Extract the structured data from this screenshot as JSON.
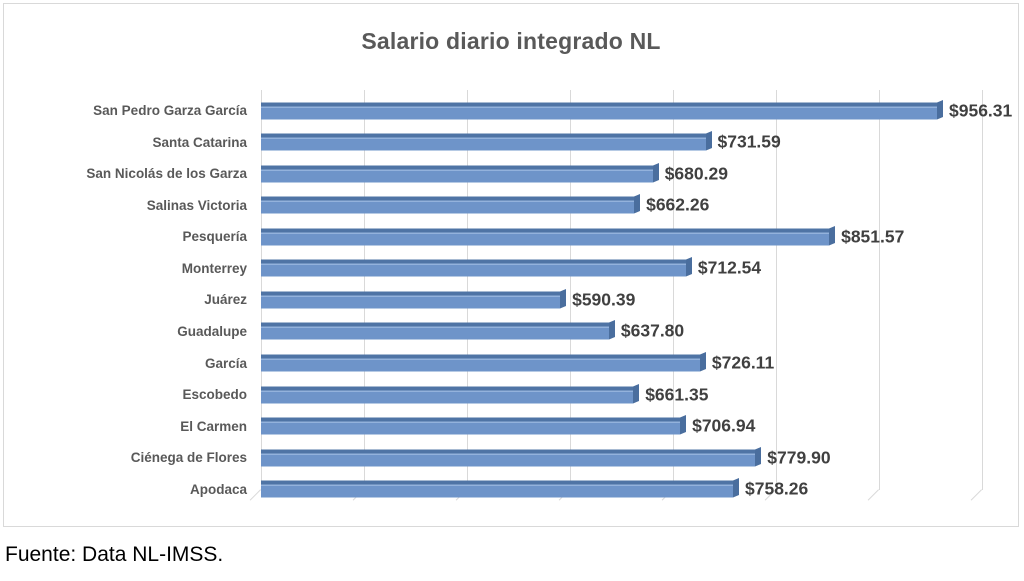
{
  "title": "Salario diario integrado NL",
  "source_note": "Fuente: Data NL-IMSS.",
  "colors": {
    "bar_main": "#6e94c9",
    "bar_top_edge": "#4f74a5",
    "bar_highlight": "#93b2dc",
    "bar_end_cap": "#4a6e9e",
    "gridline": "#d9d9d9",
    "frame_border": "#d9d9d9",
    "title_text": "#595959",
    "category_text": "#595959",
    "value_text": "#404040",
    "source_text": "#000000"
  },
  "chart_data": {
    "type": "bar",
    "orientation": "horizontal",
    "title": "Salario diario integrado NL",
    "categories": [
      "San Pedro Garza García",
      "Santa Catarina",
      "San Nicolás de los Garza",
      "Salinas Victoria",
      "Pesquería",
      "Monterrey",
      "Juárez",
      "Guadalupe",
      "García",
      "Escobedo",
      "El Carmen",
      "Ciénega de Flores",
      "Apodaca"
    ],
    "values": [
      956.31,
      731.59,
      680.29,
      662.26,
      851.57,
      712.54,
      590.39,
      637.8,
      726.11,
      661.35,
      706.94,
      779.9,
      758.26
    ],
    "data_labels": [
      "$956.31",
      "$731.59",
      "$680.29",
      "$662.26",
      "$851.57",
      "$712.54",
      "$590.39",
      "$637.80",
      "$726.11",
      "$661.35",
      "$706.94",
      "$779.90",
      "$758.26"
    ],
    "value_prefix": "$",
    "xlim": [
      300,
      1000
    ],
    "gridline_step": 100,
    "grid": true,
    "grid_style": "vertical-with-3d-feet",
    "legend": false,
    "axis_tick_labels_visible": false,
    "style": "excel-3d-horizontal-bar"
  }
}
